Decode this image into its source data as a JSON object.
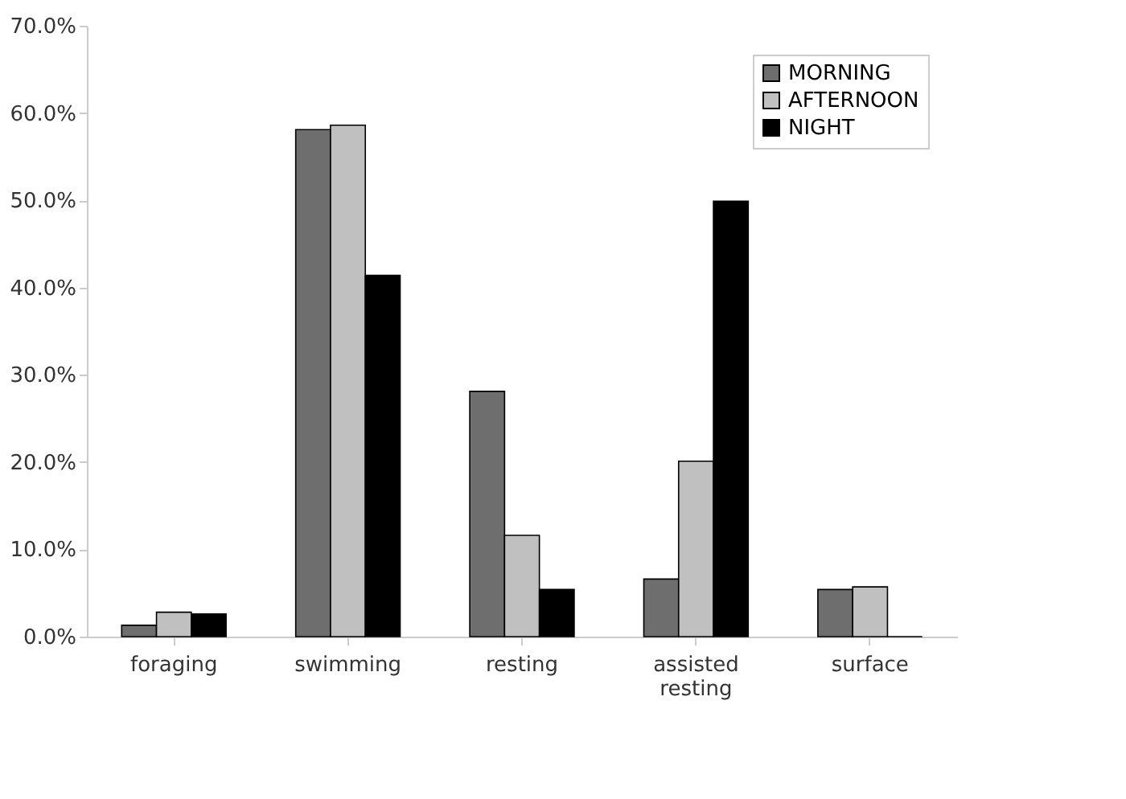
{
  "chart_data": {
    "type": "bar",
    "categories": [
      "foraging",
      "swimming",
      "resting",
      "assisted resting",
      "surface"
    ],
    "series": [
      {
        "name": "MORNING",
        "color": "#6e6e6e",
        "values": [
          1.3,
          58.1,
          28.1,
          6.6,
          5.4
        ]
      },
      {
        "name": "AFTERNOON",
        "color": "#c0c0c0",
        "values": [
          2.8,
          58.6,
          11.6,
          20.1,
          5.7
        ]
      },
      {
        "name": "NIGHT",
        "color": "#000000",
        "values": [
          2.6,
          41.4,
          5.4,
          49.9,
          0
        ]
      }
    ],
    "ylim": [
      0,
      70
    ],
    "yticks": [
      {
        "value": 0,
        "label": "0.0%"
      },
      {
        "value": 10,
        "label": "10.0%"
      },
      {
        "value": 20,
        "label": "20.0%"
      },
      {
        "value": 30,
        "label": "30.0%"
      },
      {
        "value": 40,
        "label": "40.0%"
      },
      {
        "value": 50,
        "label": "50.0%"
      },
      {
        "value": 60,
        "label": "60.0%"
      },
      {
        "value": 70,
        "label": "70.0%"
      }
    ],
    "grid": false,
    "legend": "top right"
  }
}
